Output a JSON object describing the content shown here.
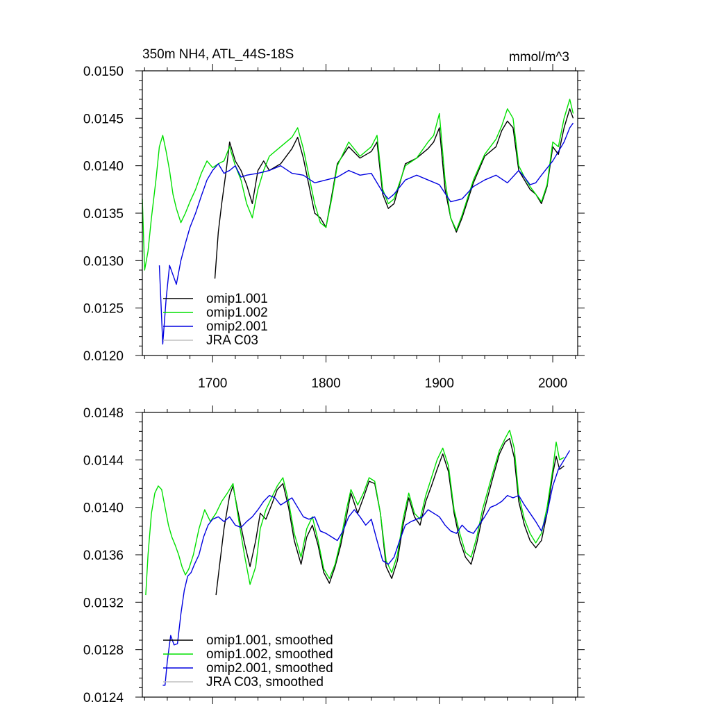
{
  "colors": {
    "omip1_001": "#000000",
    "omip1_002": "#00e000",
    "omip2_001": "#0000e0",
    "jra_c03": "#c0c0c0"
  },
  "chart_data": [
    {
      "type": "line",
      "title": "350m NH4, ATL_44S-18S",
      "units": "mmol/m^3",
      "xlabel": "",
      "ylabel": "",
      "xlim": [
        1638,
        2022
      ],
      "ylim": [
        0.012,
        0.015
      ],
      "xticks": [
        "1700",
        "1800",
        "1900",
        "2000"
      ],
      "yticks": [
        "0.0120",
        "0.0125",
        "0.0130",
        "0.0135",
        "0.0140",
        "0.0145",
        "0.0150"
      ],
      "legend_position": "bottom-left",
      "series": [
        {
          "name": "omip1.001",
          "color": "#000000",
          "x": [
            1702,
            1705,
            1708,
            1712,
            1715,
            1720,
            1725,
            1730,
            1735,
            1740,
            1745,
            1750,
            1760,
            1770,
            1775,
            1780,
            1790,
            1795,
            1800,
            1805,
            1810,
            1820,
            1830,
            1840,
            1845,
            1850,
            1855,
            1860,
            1870,
            1880,
            1890,
            1895,
            1900,
            1905,
            1910,
            1915,
            1920,
            1930,
            1940,
            1950,
            1955,
            1960,
            1965,
            1970,
            1975,
            1980,
            1985,
            1990,
            1995,
            2000,
            2005,
            2010,
            2015,
            2018
          ],
          "y": [
            0.01281,
            0.0133,
            0.0136,
            0.01395,
            0.01425,
            0.01405,
            0.01395,
            0.0138,
            0.0136,
            0.01395,
            0.01405,
            0.01395,
            0.01402,
            0.01418,
            0.0143,
            0.01408,
            0.0135,
            0.01345,
            0.01335,
            0.01368,
            0.01402,
            0.0142,
            0.01408,
            0.01415,
            0.01425,
            0.0137,
            0.01355,
            0.0136,
            0.01402,
            0.01408,
            0.01418,
            0.01425,
            0.0144,
            0.01375,
            0.01345,
            0.0133,
            0.01345,
            0.01382,
            0.0141,
            0.0142,
            0.01437,
            0.01447,
            0.0144,
            0.01395,
            0.01385,
            0.01375,
            0.0137,
            0.0136,
            0.01378,
            0.0142,
            0.01412,
            0.0144,
            0.0146,
            0.0145
          ]
        },
        {
          "name": "omip1.002",
          "color": "#00e000",
          "x": [
            1638,
            1640,
            1643,
            1646,
            1650,
            1653,
            1656,
            1659,
            1662,
            1665,
            1668,
            1672,
            1676,
            1680,
            1685,
            1690,
            1695,
            1700,
            1705,
            1710,
            1715,
            1720,
            1725,
            1730,
            1735,
            1740,
            1745,
            1750,
            1760,
            1770,
            1775,
            1780,
            1790,
            1795,
            1800,
            1805,
            1810,
            1820,
            1830,
            1840,
            1845,
            1850,
            1855,
            1860,
            1870,
            1880,
            1890,
            1895,
            1900,
            1905,
            1910,
            1915,
            1920,
            1930,
            1940,
            1950,
            1955,
            1960,
            1965,
            1970,
            1975,
            1980,
            1985,
            1990,
            1995,
            2000,
            2005,
            2010,
            2015,
            2018
          ],
          "y": [
            0.01365,
            0.0129,
            0.0131,
            0.01345,
            0.01385,
            0.0142,
            0.01432,
            0.01415,
            0.01395,
            0.0137,
            0.01355,
            0.0134,
            0.0135,
            0.01362,
            0.01375,
            0.01392,
            0.01405,
            0.01398,
            0.01402,
            0.01405,
            0.0142,
            0.014,
            0.01385,
            0.0136,
            0.01345,
            0.01375,
            0.01395,
            0.0141,
            0.0142,
            0.0143,
            0.0144,
            0.01418,
            0.0136,
            0.0134,
            0.01335,
            0.01365,
            0.014,
            0.01425,
            0.0141,
            0.0142,
            0.01432,
            0.01375,
            0.0136,
            0.01365,
            0.014,
            0.01408,
            0.01425,
            0.01432,
            0.01455,
            0.01385,
            0.01345,
            0.01332,
            0.01348,
            0.01385,
            0.01412,
            0.01428,
            0.01442,
            0.0146,
            0.0145,
            0.014,
            0.01388,
            0.01378,
            0.0137,
            0.01362,
            0.0138,
            0.01425,
            0.0142,
            0.0145,
            0.0147,
            0.01455
          ]
        },
        {
          "name": "omip2.001",
          "color": "#0000e0",
          "x": [
            1653,
            1656,
            1659,
            1662,
            1665,
            1668,
            1672,
            1676,
            1680,
            1685,
            1690,
            1695,
            1700,
            1705,
            1710,
            1715,
            1720,
            1725,
            1730,
            1740,
            1750,
            1760,
            1770,
            1780,
            1790,
            1800,
            1810,
            1820,
            1830,
            1840,
            1850,
            1855,
            1860,
            1870,
            1880,
            1890,
            1900,
            1910,
            1920,
            1930,
            1940,
            1950,
            1960,
            1970,
            1975,
            1980,
            1985,
            1990,
            2000,
            2010,
            2015,
            2018
          ],
          "y": [
            0.01295,
            0.01212,
            0.0126,
            0.01295,
            0.01285,
            0.01275,
            0.013,
            0.01318,
            0.01335,
            0.0135,
            0.01368,
            0.01385,
            0.01395,
            0.01402,
            0.01392,
            0.01395,
            0.014,
            0.01388,
            0.0139,
            0.01392,
            0.01395,
            0.014,
            0.01392,
            0.0139,
            0.01382,
            0.01385,
            0.01388,
            0.01395,
            0.0139,
            0.01392,
            0.01372,
            0.01365,
            0.0137,
            0.01385,
            0.0139,
            0.01385,
            0.0138,
            0.01362,
            0.01365,
            0.01378,
            0.01385,
            0.0139,
            0.01382,
            0.01395,
            0.01388,
            0.0138,
            0.01382,
            0.0139,
            0.01405,
            0.01425,
            0.0144,
            0.01445
          ]
        },
        {
          "name": "JRA C03",
          "color": "#c0c0c0",
          "x": [],
          "y": []
        }
      ]
    },
    {
      "type": "line",
      "title": "",
      "units": "",
      "xlabel": "",
      "ylabel": "",
      "xlim": [
        1638,
        2022
      ],
      "ylim": [
        0.0124,
        0.0148
      ],
      "xticks": [],
      "yticks": [
        "0.0124",
        "0.0128",
        "0.0132",
        "0.0136",
        "0.0140",
        "0.0144",
        "0.0148"
      ],
      "legend_position": "bottom-left",
      "series": [
        {
          "name": "omip1.001, smoothed",
          "color": "#000000",
          "x": [
            1703,
            1706,
            1710,
            1715,
            1718,
            1722,
            1728,
            1733,
            1738,
            1742,
            1747,
            1752,
            1757,
            1762,
            1767,
            1772,
            1778,
            1783,
            1788,
            1793,
            1798,
            1803,
            1808,
            1813,
            1818,
            1822,
            1828,
            1833,
            1838,
            1843,
            1848,
            1853,
            1858,
            1863,
            1868,
            1873,
            1878,
            1883,
            1888,
            1893,
            1898,
            1903,
            1908,
            1913,
            1918,
            1923,
            1928,
            1933,
            1938,
            1943,
            1948,
            1953,
            1958,
            1962,
            1966,
            1970,
            1975,
            1980,
            1985,
            1990,
            1995,
            2000,
            2003,
            2006,
            2010
          ],
          "y": [
            0.01326,
            0.0135,
            0.01382,
            0.0141,
            0.01418,
            0.01398,
            0.0137,
            0.0135,
            0.01372,
            0.01395,
            0.0139,
            0.01402,
            0.01415,
            0.0142,
            0.014,
            0.01372,
            0.01352,
            0.01375,
            0.01385,
            0.01368,
            0.01345,
            0.01336,
            0.0135,
            0.01368,
            0.01392,
            0.01412,
            0.01395,
            0.01408,
            0.01422,
            0.0142,
            0.01395,
            0.0135,
            0.0134,
            0.01355,
            0.01385,
            0.01408,
            0.01392,
            0.01385,
            0.01405,
            0.01418,
            0.01432,
            0.01445,
            0.0143,
            0.01395,
            0.01372,
            0.01358,
            0.01352,
            0.0137,
            0.01392,
            0.0141,
            0.01428,
            0.01445,
            0.01455,
            0.01458,
            0.01442,
            0.01405,
            0.01385,
            0.01372,
            0.01366,
            0.01372,
            0.01395,
            0.01428,
            0.01443,
            0.01432,
            0.01435
          ]
        },
        {
          "name": "omip1.002, smoothed",
          "color": "#00e000",
          "x": [
            1641,
            1643,
            1646,
            1649,
            1652,
            1655,
            1658,
            1661,
            1664,
            1667,
            1670,
            1673,
            1676,
            1679,
            1683,
            1688,
            1693,
            1698,
            1703,
            1708,
            1713,
            1718,
            1722,
            1728,
            1733,
            1738,
            1742,
            1747,
            1752,
            1757,
            1762,
            1767,
            1772,
            1778,
            1783,
            1788,
            1793,
            1798,
            1803,
            1808,
            1813,
            1818,
            1822,
            1828,
            1833,
            1838,
            1843,
            1848,
            1853,
            1858,
            1863,
            1868,
            1873,
            1878,
            1883,
            1888,
            1893,
            1898,
            1903,
            1908,
            1913,
            1918,
            1923,
            1928,
            1933,
            1938,
            1943,
            1948,
            1953,
            1958,
            1962,
            1966,
            1970,
            1975,
            1980,
            1985,
            1990,
            1995,
            2000,
            2003,
            2006,
            2010
          ],
          "y": [
            0.01326,
            0.0136,
            0.01395,
            0.01412,
            0.01418,
            0.01415,
            0.014,
            0.01385,
            0.01375,
            0.01368,
            0.0136,
            0.0135,
            0.01343,
            0.01348,
            0.0136,
            0.01382,
            0.01398,
            0.01388,
            0.01395,
            0.01405,
            0.01412,
            0.0142,
            0.01395,
            0.0136,
            0.01335,
            0.0135,
            0.01382,
            0.01398,
            0.01408,
            0.01418,
            0.01425,
            0.01405,
            0.01378,
            0.01358,
            0.01382,
            0.01392,
            0.01372,
            0.01348,
            0.0134,
            0.01352,
            0.01372,
            0.01398,
            0.01415,
            0.01402,
            0.01412,
            0.01425,
            0.01422,
            0.01395,
            0.01355,
            0.01345,
            0.0136,
            0.0139,
            0.01412,
            0.01395,
            0.0139,
            0.0141,
            0.01425,
            0.0144,
            0.0145,
            0.01435,
            0.01398,
            0.01378,
            0.01362,
            0.01358,
            0.01375,
            0.01398,
            0.01415,
            0.01432,
            0.01448,
            0.01458,
            0.01465,
            0.0145,
            0.0141,
            0.0139,
            0.01378,
            0.0137,
            0.01378,
            0.014,
            0.01432,
            0.01455,
            0.0144,
            0.01442
          ]
        },
        {
          "name": "omip2.001, smoothed",
          "color": "#0000e0",
          "x": [
            1656,
            1658,
            1660,
            1663,
            1666,
            1669,
            1672,
            1675,
            1678,
            1681,
            1684,
            1688,
            1692,
            1696,
            1700,
            1705,
            1710,
            1715,
            1720,
            1725,
            1730,
            1735,
            1740,
            1745,
            1750,
            1755,
            1760,
            1765,
            1770,
            1775,
            1780,
            1785,
            1790,
            1795,
            1800,
            1805,
            1810,
            1815,
            1820,
            1825,
            1830,
            1835,
            1840,
            1845,
            1850,
            1855,
            1860,
            1865,
            1870,
            1875,
            1880,
            1885,
            1890,
            1895,
            1900,
            1905,
            1910,
            1915,
            1920,
            1925,
            1930,
            1935,
            1940,
            1945,
            1950,
            1955,
            1960,
            1965,
            1970,
            1975,
            1980,
            1985,
            1990,
            1995,
            2000,
            2005,
            2010,
            2015
          ],
          "y": [
            0.0125,
            0.0125,
            0.0127,
            0.01292,
            0.01284,
            0.01285,
            0.0131,
            0.0133,
            0.01342,
            0.01345,
            0.01352,
            0.0136,
            0.01375,
            0.01385,
            0.0139,
            0.01392,
            0.01388,
            0.01392,
            0.01385,
            0.01383,
            0.01388,
            0.01392,
            0.01398,
            0.01405,
            0.0141,
            0.01408,
            0.01402,
            0.01405,
            0.01408,
            0.014,
            0.01392,
            0.0139,
            0.01392,
            0.0138,
            0.01378,
            0.01375,
            0.01372,
            0.0138,
            0.01392,
            0.01398,
            0.01392,
            0.01385,
            0.0139,
            0.01372,
            0.01355,
            0.01352,
            0.01358,
            0.01372,
            0.01385,
            0.01388,
            0.0139,
            0.01392,
            0.01398,
            0.01395,
            0.01392,
            0.01385,
            0.0138,
            0.01378,
            0.01385,
            0.0138,
            0.01378,
            0.01385,
            0.01392,
            0.014,
            0.01402,
            0.01405,
            0.0141,
            0.01408,
            0.0141,
            0.01402,
            0.01395,
            0.01388,
            0.0138,
            0.01395,
            0.01418,
            0.01432,
            0.0144,
            0.01448
          ]
        },
        {
          "name": "JRA C03, smoothed",
          "color": "#c0c0c0",
          "x": [],
          "y": []
        }
      ]
    }
  ]
}
